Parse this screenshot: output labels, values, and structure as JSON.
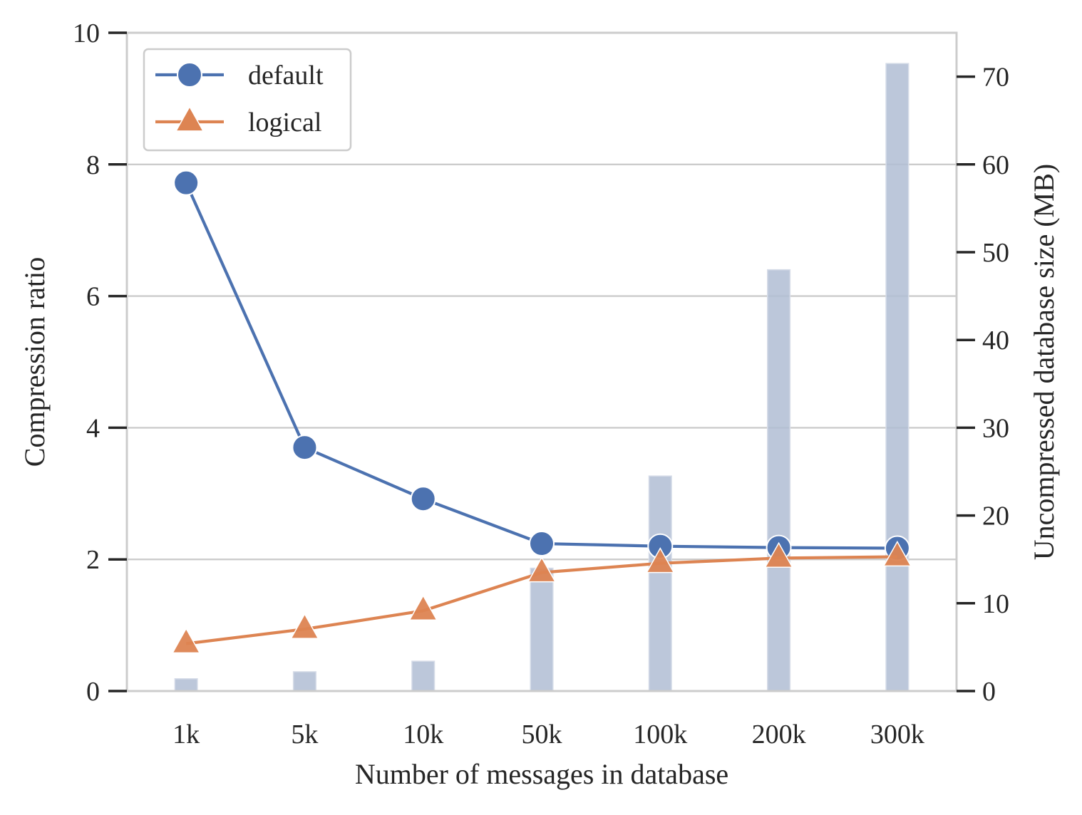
{
  "chart_data": {
    "type": "line",
    "categories": [
      "1k",
      "5k",
      "10k",
      "50k",
      "100k",
      "200k",
      "300k"
    ],
    "xlabel": "Number of messages in database",
    "ylabel": "Compression ratio",
    "ylabel_right": "Uncompressed database size (MB)",
    "ylim": [
      0,
      10
    ],
    "ylim_right": [
      0,
      75
    ],
    "yticks": [
      0,
      2,
      4,
      6,
      8,
      10
    ],
    "yticks_right": [
      0,
      10,
      20,
      30,
      40,
      50,
      60,
      70
    ],
    "grid": true,
    "legend_position": "top-left",
    "series": [
      {
        "name": "default",
        "axis": "left",
        "marker": "circle",
        "color": "#4c72b0",
        "values": [
          7.72,
          3.7,
          2.92,
          2.24,
          2.2,
          2.18,
          2.17
        ]
      },
      {
        "name": "logical",
        "axis": "left",
        "marker": "triangle",
        "color": "#dd8452",
        "values": [
          0.72,
          0.94,
          1.22,
          1.8,
          1.94,
          2.02,
          2.04
        ]
      },
      {
        "axis": "right",
        "type": "bar",
        "color": "#b0bdd4",
        "values": [
          1.4,
          2.2,
          3.4,
          14.0,
          24.5,
          48.0,
          71.5
        ]
      }
    ]
  }
}
